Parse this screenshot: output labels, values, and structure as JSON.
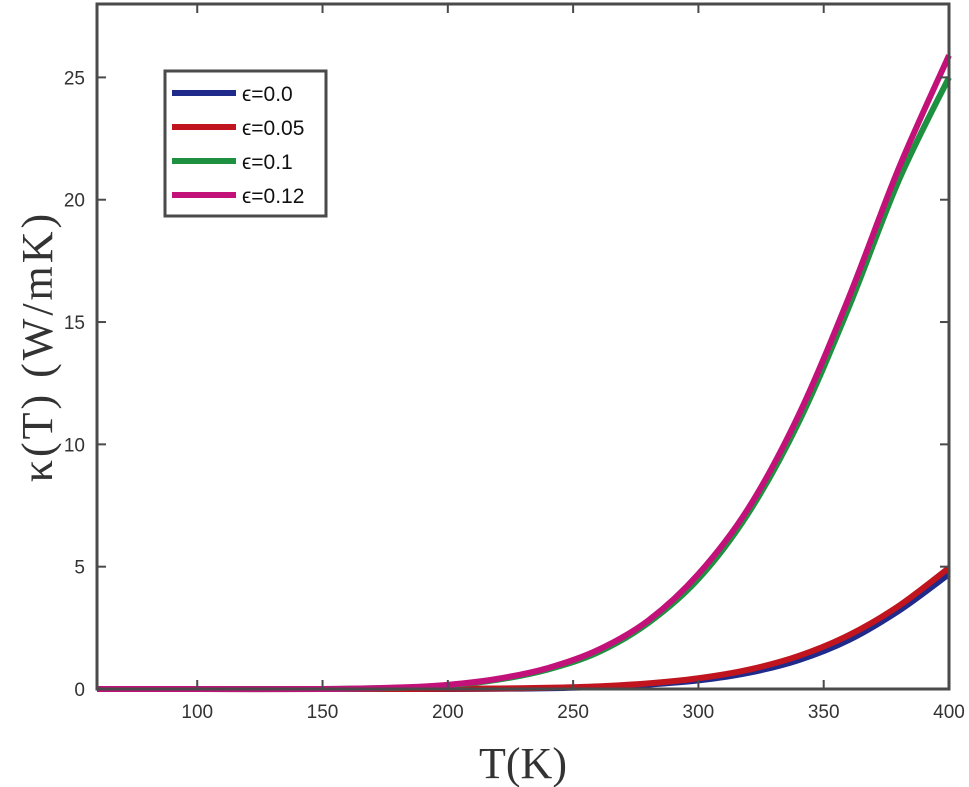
{
  "chart_data": {
    "type": "line",
    "title": "",
    "xlabel": "T(K)",
    "ylabel": "κ(T) (W/mK)",
    "xlim": [
      60,
      400
    ],
    "ylim": [
      0,
      28
    ],
    "x_ticks": [
      100,
      150,
      200,
      250,
      300,
      350,
      400
    ],
    "y_ticks": [
      0,
      5,
      10,
      15,
      20,
      25
    ],
    "grid": false,
    "legend_position": "top-left",
    "x": [
      60,
      100,
      150,
      180,
      200,
      220,
      240,
      260,
      280,
      300,
      320,
      340,
      360,
      380,
      400
    ],
    "series": [
      {
        "name": "ϵ=0.0",
        "color": "#1f2a8a",
        "values": [
          0,
          0,
          0,
          0,
          0,
          0.01,
          0.03,
          0.08,
          0.18,
          0.35,
          0.66,
          1.18,
          2.0,
          3.2,
          4.7
        ]
      },
      {
        "name": "ϵ=0.05",
        "color": "#c0141e",
        "values": [
          0,
          0,
          0,
          0,
          0.01,
          0.02,
          0.05,
          0.11,
          0.23,
          0.44,
          0.79,
          1.35,
          2.2,
          3.4,
          4.95
        ]
      },
      {
        "name": "ϵ=0.1",
        "color": "#1e9140",
        "values": [
          0,
          0,
          0,
          0.05,
          0.15,
          0.38,
          0.8,
          1.5,
          2.7,
          4.5,
          7.2,
          10.9,
          15.6,
          20.8,
          25.0
        ]
      },
      {
        "name": "ϵ=0.12",
        "color": "#c2127a",
        "values": [
          0,
          0,
          0,
          0.06,
          0.17,
          0.42,
          0.86,
          1.6,
          2.8,
          4.7,
          7.4,
          11.2,
          16.0,
          21.3,
          25.9
        ]
      }
    ]
  }
}
